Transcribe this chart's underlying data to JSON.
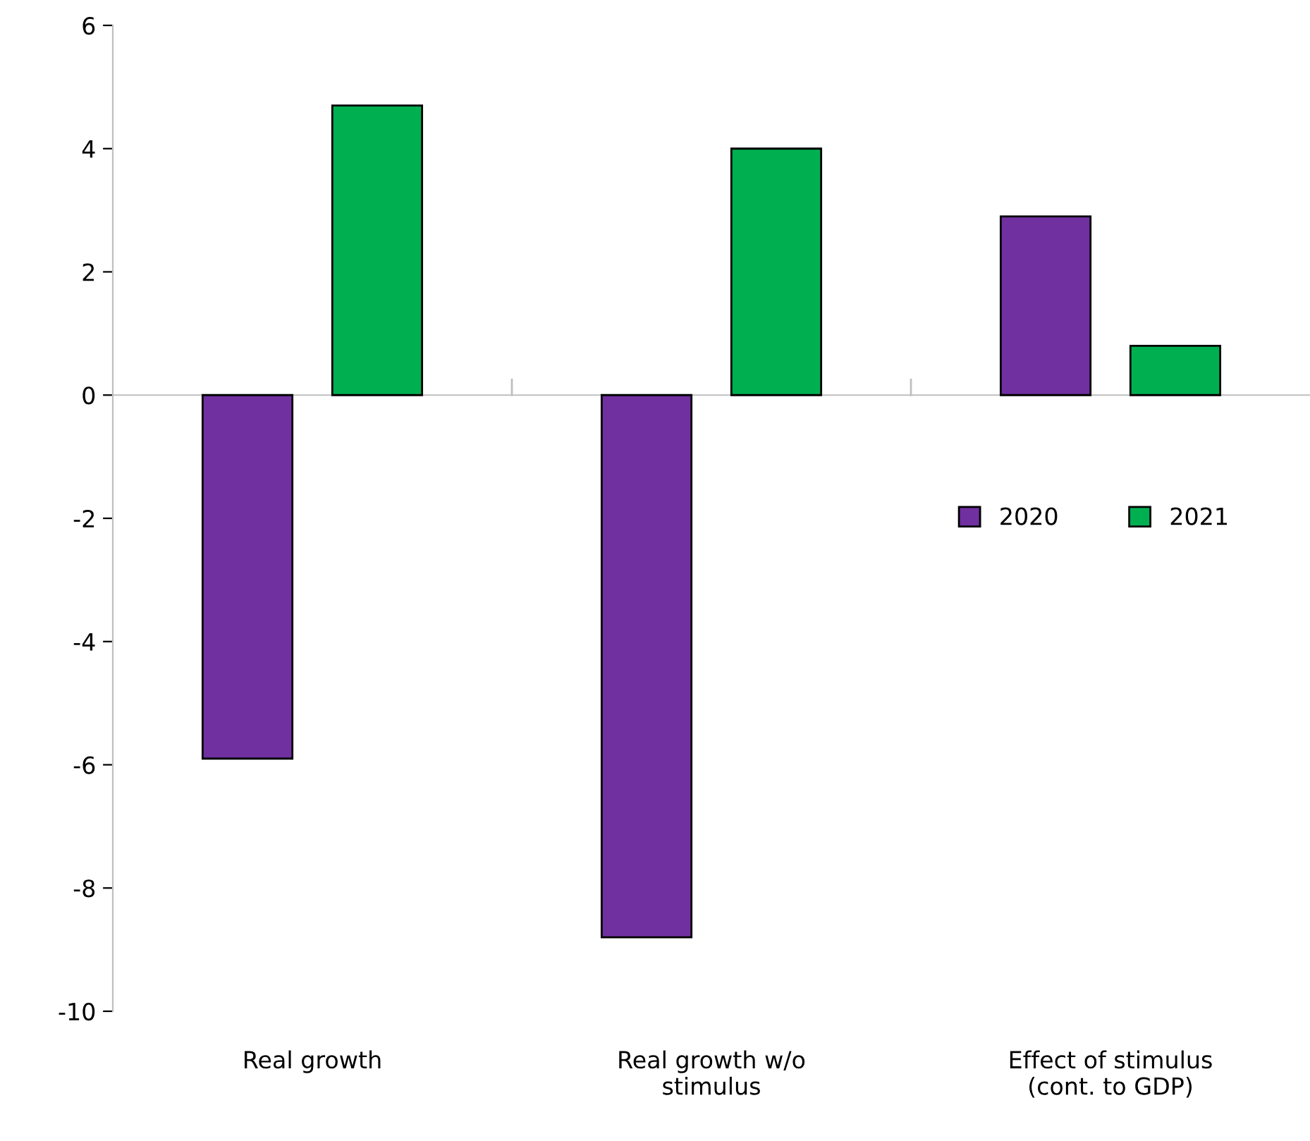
{
  "chart_data": {
    "type": "bar",
    "categories": [
      "Real growth",
      "Real growth w/o\nstimulus",
      "Effect of stimulus\n(cont. to GDP)"
    ],
    "series": [
      {
        "name": "2020",
        "color": "#7030a0",
        "values": [
          -5.9,
          -8.8,
          2.9
        ]
      },
      {
        "name": "2021",
        "color": "#00b050",
        "values": [
          4.7,
          4.0,
          0.8
        ]
      }
    ],
    "ylim": [
      -10,
      6
    ],
    "yticks": [
      -10,
      -8,
      -6,
      -4,
      -2,
      0,
      2,
      4,
      6
    ],
    "legend": "center right"
  }
}
